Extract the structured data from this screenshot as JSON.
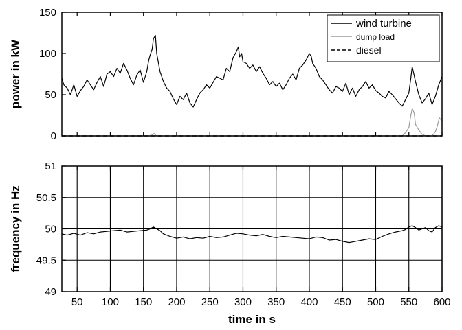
{
  "chart_data": [
    {
      "type": "line",
      "ylabel": "power in kW",
      "xlim": [
        27,
        600
      ],
      "ylim": [
        0,
        150
      ],
      "yticks": [
        0,
        50,
        100,
        150
      ],
      "xticks": [
        50,
        100,
        150,
        200,
        250,
        300,
        350,
        400,
        450,
        500,
        550,
        600
      ],
      "grid": false,
      "legend": "top-right",
      "series": [
        {
          "name": "wind turbine",
          "color": "#000000",
          "dash": "solid",
          "x": [
            27,
            30,
            35,
            40,
            45,
            50,
            55,
            60,
            65,
            70,
            75,
            80,
            85,
            90,
            95,
            100,
            105,
            110,
            115,
            120,
            125,
            130,
            135,
            140,
            145,
            150,
            155,
            158,
            160,
            163,
            165,
            168,
            170,
            175,
            180,
            185,
            190,
            195,
            200,
            205,
            210,
            215,
            220,
            225,
            230,
            235,
            240,
            245,
            250,
            255,
            260,
            265,
            270,
            275,
            280,
            285,
            290,
            293,
            295,
            298,
            300,
            305,
            310,
            315,
            320,
            325,
            330,
            335,
            340,
            345,
            350,
            355,
            360,
            365,
            370,
            375,
            380,
            385,
            390,
            395,
            400,
            403,
            405,
            410,
            415,
            420,
            425,
            430,
            435,
            440,
            445,
            450,
            455,
            460,
            465,
            470,
            475,
            480,
            485,
            490,
            495,
            500,
            505,
            510,
            515,
            520,
            525,
            530,
            535,
            540,
            545,
            550,
            553,
            555,
            560,
            565,
            570,
            575,
            580,
            585,
            590,
            595,
            600
          ],
          "values": [
            70,
            62,
            58,
            50,
            62,
            48,
            55,
            60,
            68,
            62,
            56,
            65,
            72,
            60,
            75,
            78,
            72,
            82,
            76,
            88,
            80,
            70,
            62,
            74,
            80,
            65,
            78,
            92,
            98,
            105,
            118,
            122,
            100,
            78,
            66,
            58,
            54,
            45,
            38,
            48,
            44,
            52,
            40,
            35,
            44,
            52,
            56,
            62,
            58,
            65,
            72,
            70,
            68,
            82,
            78,
            95,
            102,
            108,
            96,
            100,
            90,
            88,
            82,
            86,
            78,
            84,
            76,
            70,
            62,
            66,
            60,
            64,
            56,
            62,
            70,
            75,
            68,
            82,
            86,
            92,
            100,
            96,
            88,
            82,
            72,
            68,
            62,
            56,
            52,
            60,
            58,
            54,
            64,
            50,
            58,
            48,
            56,
            60,
            66,
            58,
            62,
            55,
            52,
            48,
            46,
            54,
            50,
            45,
            40,
            36,
            44,
            52,
            70,
            84,
            66,
            50,
            40,
            45,
            52,
            38,
            48,
            62,
            72
          ]
        },
        {
          "name": "dump load",
          "color": "#9a9a9a",
          "dash": "solid",
          "x": [
            27,
            160,
            162,
            164,
            166,
            168,
            170,
            530,
            535,
            540,
            545,
            550,
            553,
            555,
            558,
            560,
            565,
            570,
            575,
            580,
            585,
            590,
            593,
            596,
            600
          ],
          "values": [
            0,
            0,
            2,
            1,
            3,
            1,
            0,
            0,
            0,
            0,
            4,
            10,
            25,
            33,
            28,
            14,
            7,
            2,
            0,
            0,
            0,
            5,
            12,
            22,
            18
          ]
        },
        {
          "name": "diesel",
          "color": "#000000",
          "dash": "dashed",
          "x": [
            27,
            600
          ],
          "values": [
            0,
            0
          ]
        }
      ]
    },
    {
      "type": "line",
      "xlabel": "time in s",
      "ylabel": "frequency in Hz",
      "xlim": [
        27,
        600
      ],
      "ylim": [
        49,
        51
      ],
      "yticks": [
        49,
        49.5,
        50,
        50.5,
        51
      ],
      "ytick_labels": [
        "49",
        "49.5",
        "50",
        "50.5",
        "51"
      ],
      "xticks": [
        50,
        100,
        150,
        200,
        250,
        300,
        350,
        400,
        450,
        500,
        550,
        600
      ],
      "xtick_labels": [
        "50",
        "100",
        "150",
        "200",
        "250",
        "300",
        "350",
        "400",
        "450",
        "500",
        "550",
        "600"
      ],
      "grid": true,
      "series": [
        {
          "color": "#000000",
          "dash": "solid",
          "x": [
            27,
            35,
            45,
            55,
            65,
            75,
            85,
            95,
            105,
            115,
            125,
            135,
            145,
            155,
            160,
            165,
            170,
            175,
            180,
            190,
            200,
            210,
            220,
            230,
            240,
            250,
            260,
            270,
            280,
            290,
            300,
            310,
            320,
            330,
            340,
            350,
            360,
            370,
            380,
            390,
            400,
            410,
            420,
            430,
            440,
            450,
            460,
            470,
            480,
            490,
            500,
            510,
            520,
            530,
            540,
            545,
            550,
            555,
            560,
            565,
            570,
            575,
            580,
            585,
            590,
            595,
            600
          ],
          "values": [
            49.92,
            49.9,
            49.93,
            49.9,
            49.94,
            49.92,
            49.95,
            49.96,
            49.97,
            49.98,
            49.95,
            49.96,
            49.97,
            49.98,
            50.0,
            50.03,
            50.0,
            49.97,
            49.92,
            49.88,
            49.85,
            49.87,
            49.84,
            49.86,
            49.85,
            49.88,
            49.86,
            49.87,
            49.9,
            49.93,
            49.92,
            49.9,
            49.89,
            49.91,
            49.88,
            49.86,
            49.88,
            49.87,
            49.86,
            49.85,
            49.84,
            49.87,
            49.86,
            49.82,
            49.83,
            49.8,
            49.78,
            49.8,
            49.82,
            49.84,
            49.83,
            49.88,
            49.92,
            49.95,
            49.97,
            49.99,
            50.03,
            50.05,
            50.02,
            49.98,
            50.0,
            50.02,
            49.97,
            49.95,
            50.02,
            50.05,
            50.03
          ]
        }
      ]
    }
  ]
}
